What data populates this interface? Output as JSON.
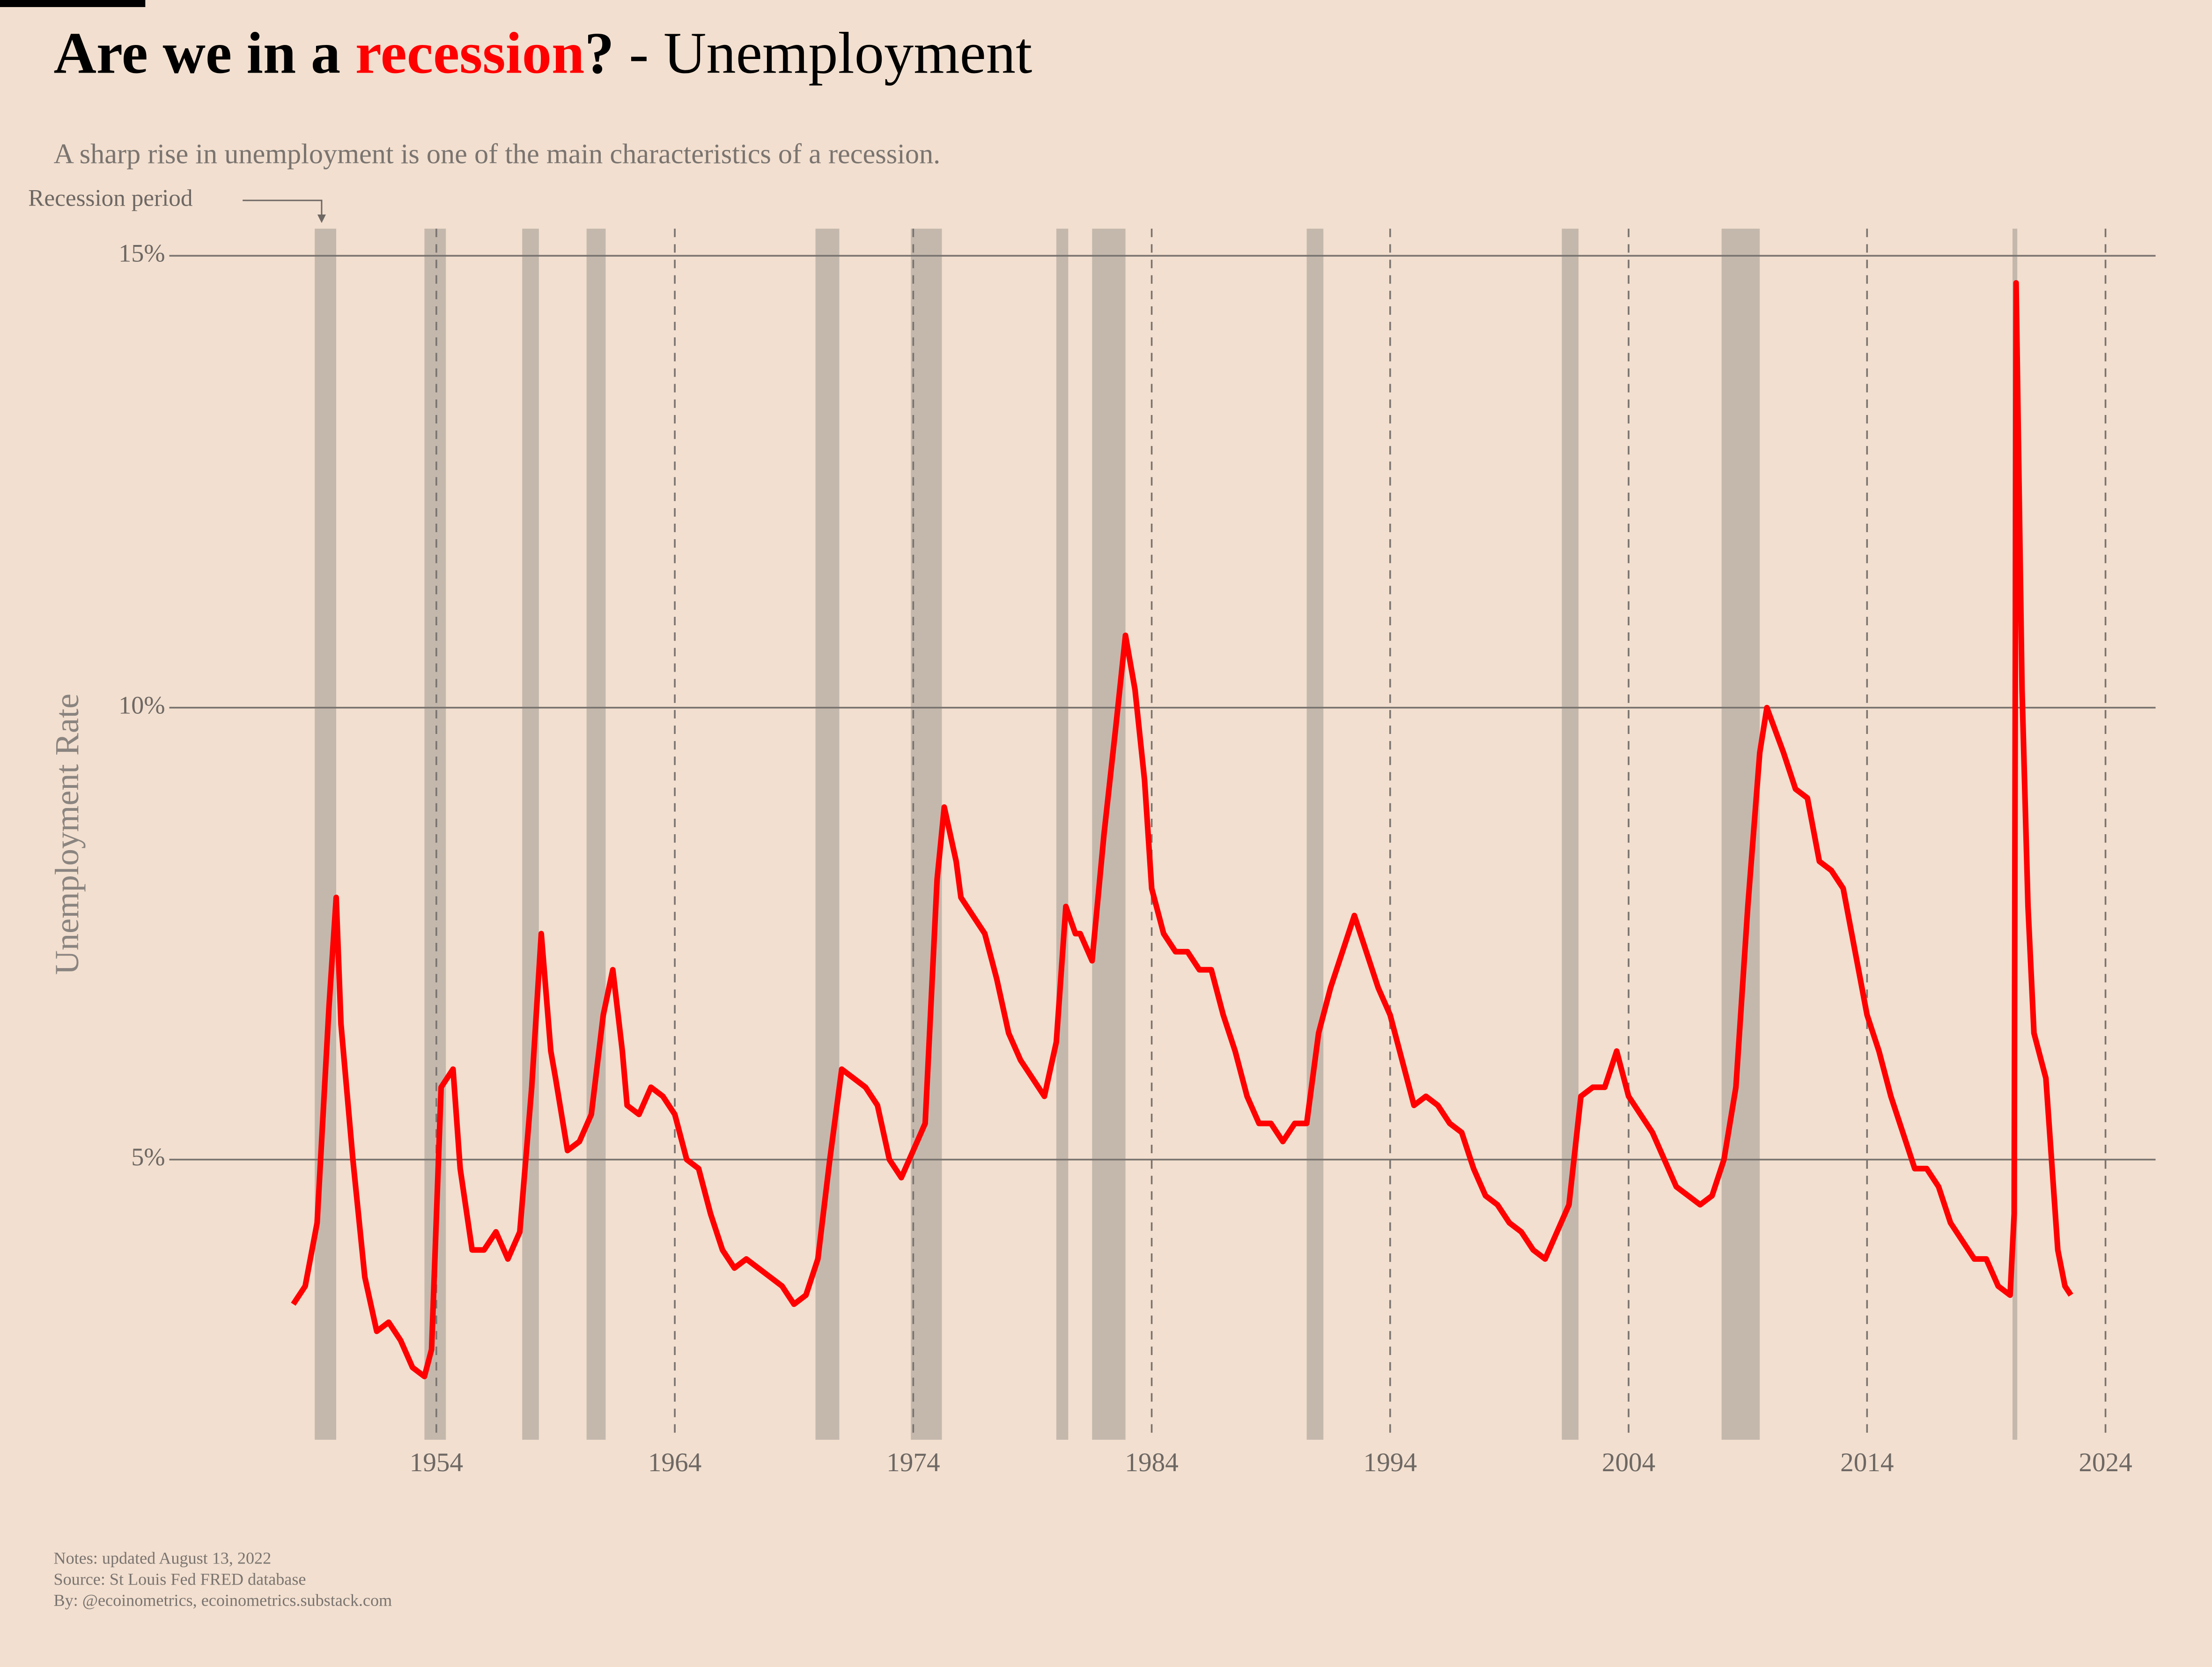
{
  "chart_data": {
    "type": "line",
    "title_parts": [
      "Are we in a ",
      "recession",
      "?",
      " - Unemployment"
    ],
    "subtitle": "A sharp rise in unemployment is one of the main characteristics of a recession.",
    "annotation": "Recession period",
    "y_label": "Unemployment Rate",
    "notes": [
      "Notes: updated August 13, 2022",
      "Source: St Louis Fed FRED database",
      "By: @ecoinometrics, ecoinometrics.substack.com"
    ],
    "xlim": [
      1942.8,
      2026.1
    ],
    "xticks": [
      1954,
      1964,
      1974,
      1984,
      1994,
      2004,
      2014,
      2024
    ],
    "ylim": [
      1.9,
      15.3
    ],
    "yticks": [
      {
        "value": 5,
        "label": "5%"
      },
      {
        "value": 10,
        "label": "10%"
      },
      {
        "value": 15,
        "label": "15%"
      }
    ],
    "grid": true,
    "recession_color": "#c4b8ad",
    "recessions": [
      [
        1948.9,
        1949.8
      ],
      [
        1953.5,
        1954.4
      ],
      [
        1957.6,
        1958.3
      ],
      [
        1960.3,
        1961.1
      ],
      [
        1969.9,
        1970.9
      ],
      [
        1973.9,
        1975.2
      ],
      [
        1980.0,
        1980.5
      ],
      [
        1981.5,
        1982.9
      ],
      [
        1990.5,
        1991.2
      ],
      [
        2001.2,
        2001.9
      ],
      [
        2007.9,
        2009.5
      ],
      [
        2020.1,
        2020.3
      ]
    ],
    "x": [
      1948.0,
      1948.5,
      1949.0,
      1949.5,
      1949.8,
      1950.0,
      1950.5,
      1951.0,
      1951.5,
      1952.0,
      1952.5,
      1953.0,
      1953.5,
      1953.8,
      1954.2,
      1954.7,
      1955.0,
      1955.5,
      1956.0,
      1956.5,
      1957.0,
      1957.5,
      1958.0,
      1958.4,
      1958.8,
      1959.0,
      1959.5,
      1960.0,
      1960.5,
      1961.0,
      1961.4,
      1961.8,
      1962.0,
      1962.5,
      1963.0,
      1963.5,
      1964.0,
      1964.5,
      1965.0,
      1965.5,
      1966.0,
      1966.5,
      1967.0,
      1967.5,
      1968.0,
      1968.5,
      1969.0,
      1969.5,
      1970.0,
      1970.5,
      1971.0,
      1971.5,
      1972.0,
      1972.5,
      1973.0,
      1973.5,
      1974.0,
      1974.5,
      1975.0,
      1975.3,
      1975.8,
      1976.0,
      1976.5,
      1977.0,
      1977.5,
      1978.0,
      1978.5,
      1979.0,
      1979.5,
      1980.0,
      1980.4,
      1980.8,
      1981.0,
      1981.5,
      1982.0,
      1982.5,
      1982.9,
      1983.3,
      1983.7,
      1984.0,
      1984.5,
      1985.0,
      1985.5,
      1986.0,
      1986.5,
      1987.0,
      1987.5,
      1988.0,
      1988.5,
      1989.0,
      1989.5,
      1990.0,
      1990.5,
      1991.0,
      1991.5,
      1992.0,
      1992.5,
      1993.0,
      1993.5,
      1994.0,
      1994.5,
      1995.0,
      1995.5,
      1996.0,
      1996.5,
      1997.0,
      1997.5,
      1998.0,
      1998.5,
      1999.0,
      1999.5,
      2000.0,
      2000.5,
      2001.0,
      2001.5,
      2002.0,
      2002.5,
      2003.0,
      2003.5,
      2004.0,
      2004.5,
      2005.0,
      2005.5,
      2006.0,
      2006.5,
      2007.0,
      2007.5,
      2008.0,
      2008.5,
      2009.0,
      2009.5,
      2009.8,
      2010.5,
      2011.0,
      2011.5,
      2012.0,
      2012.5,
      2013.0,
      2013.5,
      2014.0,
      2014.5,
      2015.0,
      2015.5,
      2016.0,
      2016.5,
      2017.0,
      2017.5,
      2018.0,
      2018.5,
      2019.0,
      2019.5,
      2020.0,
      2020.17,
      2020.25,
      2020.5,
      2020.75,
      2021.0,
      2021.5,
      2022.0,
      2022.3,
      2022.55
    ],
    "series": [
      {
        "color": "#ff0000",
        "values": [
          3.4,
          3.6,
          4.3,
          6.7,
          7.9,
          6.5,
          5.0,
          3.7,
          3.1,
          3.2,
          3.0,
          2.7,
          2.6,
          2.9,
          5.8,
          6.0,
          4.9,
          4.0,
          4.0,
          4.2,
          3.9,
          4.2,
          5.8,
          7.5,
          6.2,
          5.9,
          5.1,
          5.2,
          5.5,
          6.6,
          7.1,
          6.2,
          5.6,
          5.5,
          5.8,
          5.7,
          5.5,
          5.0,
          4.9,
          4.4,
          4.0,
          3.8,
          3.9,
          3.8,
          3.7,
          3.6,
          3.4,
          3.5,
          3.9,
          5.0,
          6.0,
          5.9,
          5.8,
          5.6,
          5.0,
          4.8,
          5.1,
          5.4,
          8.1,
          8.9,
          8.3,
          7.9,
          7.7,
          7.5,
          7.0,
          6.4,
          6.1,
          5.9,
          5.7,
          6.3,
          7.8,
          7.5,
          7.5,
          7.2,
          8.6,
          9.8,
          10.8,
          10.2,
          9.2,
          8.0,
          7.5,
          7.3,
          7.3,
          7.1,
          7.1,
          6.6,
          6.2,
          5.7,
          5.4,
          5.4,
          5.2,
          5.4,
          5.4,
          6.4,
          6.9,
          7.3,
          7.7,
          7.3,
          6.9,
          6.6,
          6.1,
          5.6,
          5.7,
          5.6,
          5.4,
          5.3,
          4.9,
          4.6,
          4.5,
          4.3,
          4.2,
          4.0,
          3.9,
          4.2,
          4.5,
          5.7,
          5.8,
          5.8,
          6.2,
          5.7,
          5.5,
          5.3,
          5.0,
          4.7,
          4.6,
          4.5,
          4.6,
          5.0,
          5.8,
          7.8,
          9.5,
          10.0,
          9.5,
          9.1,
          9.0,
          8.3,
          8.2,
          8.0,
          7.3,
          6.6,
          6.2,
          5.7,
          5.3,
          4.9,
          4.9,
          4.7,
          4.3,
          4.1,
          3.9,
          3.9,
          3.6,
          3.5,
          4.4,
          14.7,
          10.2,
          7.8,
          6.4,
          5.9,
          4.0,
          3.6,
          3.5
        ]
      }
    ]
  }
}
